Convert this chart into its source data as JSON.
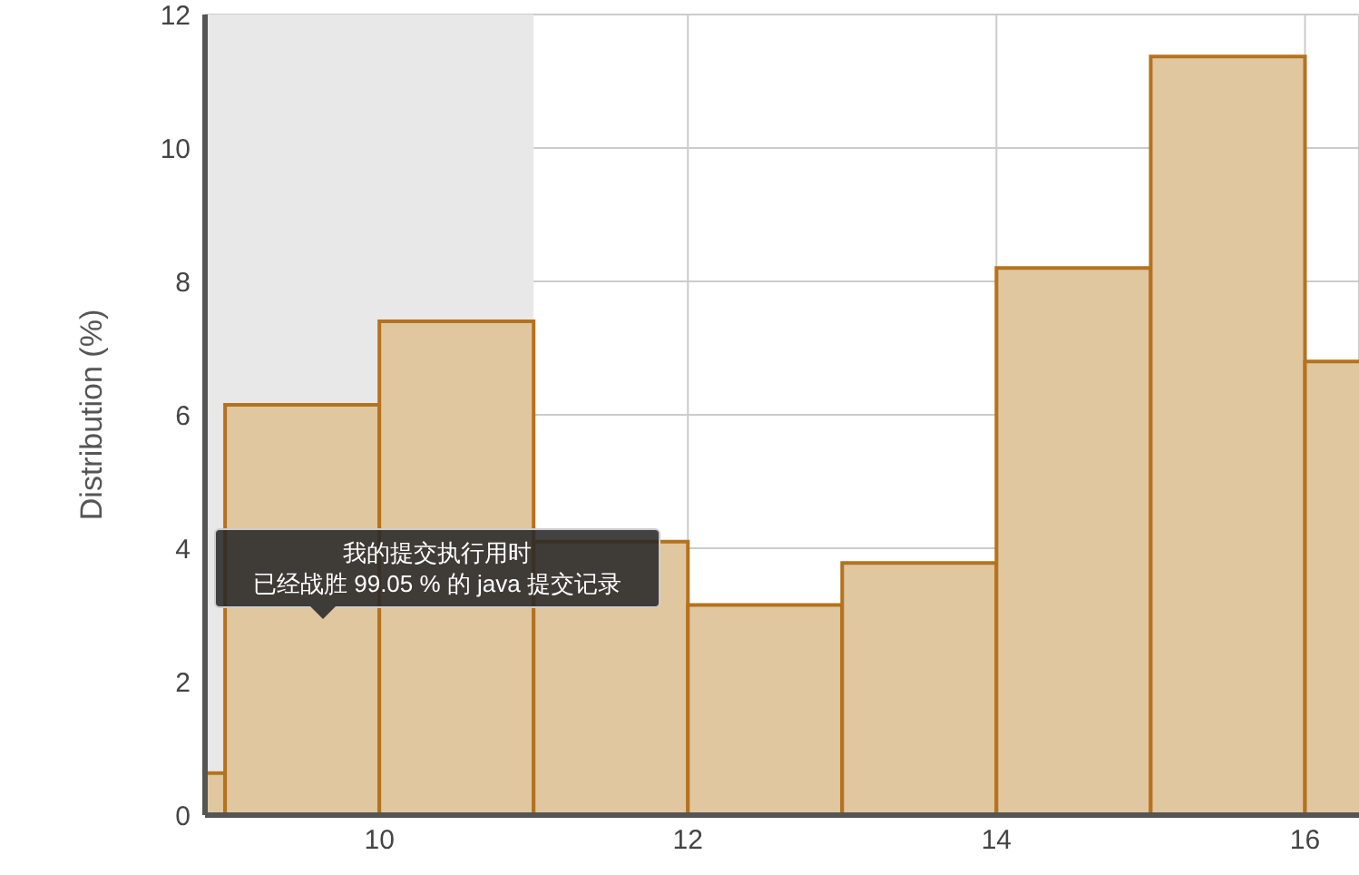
{
  "chart_data": {
    "type": "histogram",
    "ylabel": "Distribution (%)",
    "bins": [
      8,
      9,
      10,
      11,
      12,
      13,
      14,
      15,
      16,
      17
    ],
    "values": [
      0.63,
      6.15,
      7.4,
      4.1,
      3.15,
      3.78,
      8.2,
      11.37,
      6.8
    ],
    "color": "#e0c7a0",
    "xlim": [
      8.87,
      16.35
    ],
    "xticks": [
      10,
      12,
      14,
      16
    ],
    "ylim": [
      0,
      12
    ],
    "yticks": [
      0,
      2,
      4,
      6,
      8,
      10,
      12
    ],
    "grid": true,
    "bands": [
      {
        "axis": "x",
        "from": 8.87,
        "to": 11,
        "color": "#e8e8e8"
      }
    ],
    "annotations": [
      "我的提交执行用时",
      "已经战胜 99.05 % 的 java 提交记录"
    ]
  }
}
